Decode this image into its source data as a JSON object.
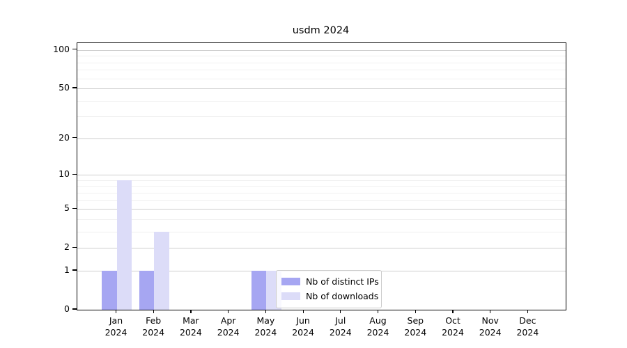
{
  "title": "usdm 2024",
  "chart_data": {
    "type": "bar",
    "title": "usdm 2024",
    "yscale": "log1p",
    "ylim": [
      0,
      113
    ],
    "grid": "horizontal",
    "yticks": [
      0,
      1,
      2,
      5,
      10,
      20,
      50,
      100
    ],
    "minor_gridlines": [
      3,
      4,
      6,
      7,
      8,
      9,
      30,
      40,
      60,
      70,
      80,
      90
    ],
    "categories": [
      "Jan",
      "Feb",
      "Mar",
      "Apr",
      "May",
      "Jun",
      "Jul",
      "Aug",
      "Sep",
      "Oct",
      "Nov",
      "Dec"
    ],
    "category_year": "2024",
    "series": [
      {
        "name": "Nb of distinct IPs",
        "color": "#a6a6f2",
        "values": [
          1,
          1,
          0,
          0,
          1,
          0,
          0,
          0,
          0,
          0,
          0,
          0
        ]
      },
      {
        "name": "Nb of downloads",
        "color": "#dcdcf8",
        "values": [
          9,
          3,
          0,
          0,
          1,
          0,
          0,
          0,
          0,
          0,
          0,
          0
        ]
      }
    ],
    "legend": {
      "position": "lower center"
    }
  }
}
